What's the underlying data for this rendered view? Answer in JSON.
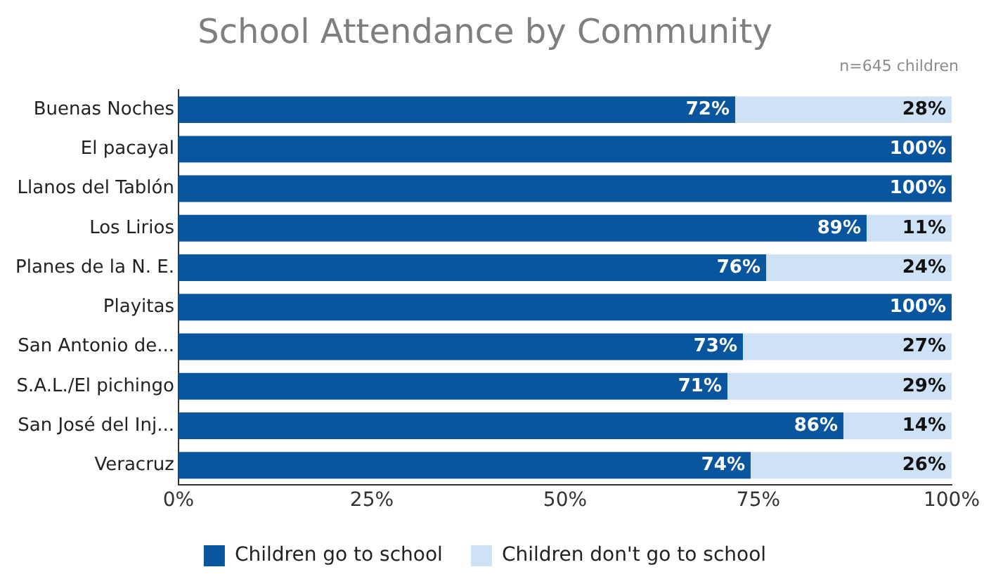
{
  "chart_data": {
    "type": "bar",
    "orientation": "horizontal",
    "stacked": true,
    "title": "School Attendance by Community",
    "annotations": [
      "n=645 children"
    ],
    "categories": [
      "Buenas Noches",
      "El pacayal",
      "Llanos del Tablón",
      "Los Lirios",
      "Planes de la N. E.",
      "Playitas",
      "San Antonio de...",
      "S.A.L./El pichingo",
      "San José del Inj...",
      "Veracruz"
    ],
    "series": [
      {
        "name": "Children go to school",
        "color": "#0a569e",
        "values": [
          72,
          100,
          100,
          89,
          76,
          100,
          73,
          71,
          86,
          74
        ],
        "value_labels": [
          "72%",
          "100%",
          "100%",
          "89%",
          "76%",
          "100%",
          "73%",
          "71%",
          "86%",
          "74%"
        ]
      },
      {
        "name": "Children don't go to school",
        "color": "#cfe2f5",
        "values": [
          28,
          0,
          0,
          11,
          24,
          0,
          27,
          29,
          14,
          26
        ],
        "value_labels": [
          "28%",
          null,
          null,
          "11%",
          "24%",
          null,
          "27%",
          "29%",
          "14%",
          "26%"
        ]
      }
    ],
    "xlim": [
      0,
      100
    ],
    "xticks": [
      {
        "value": 0,
        "label": "0%"
      },
      {
        "value": 25,
        "label": "25%"
      },
      {
        "value": 50,
        "label": "50%"
      },
      {
        "value": 75,
        "label": "75%"
      },
      {
        "value": 100,
        "label": "100%"
      }
    ],
    "grid": false,
    "legend": "bottom"
  }
}
